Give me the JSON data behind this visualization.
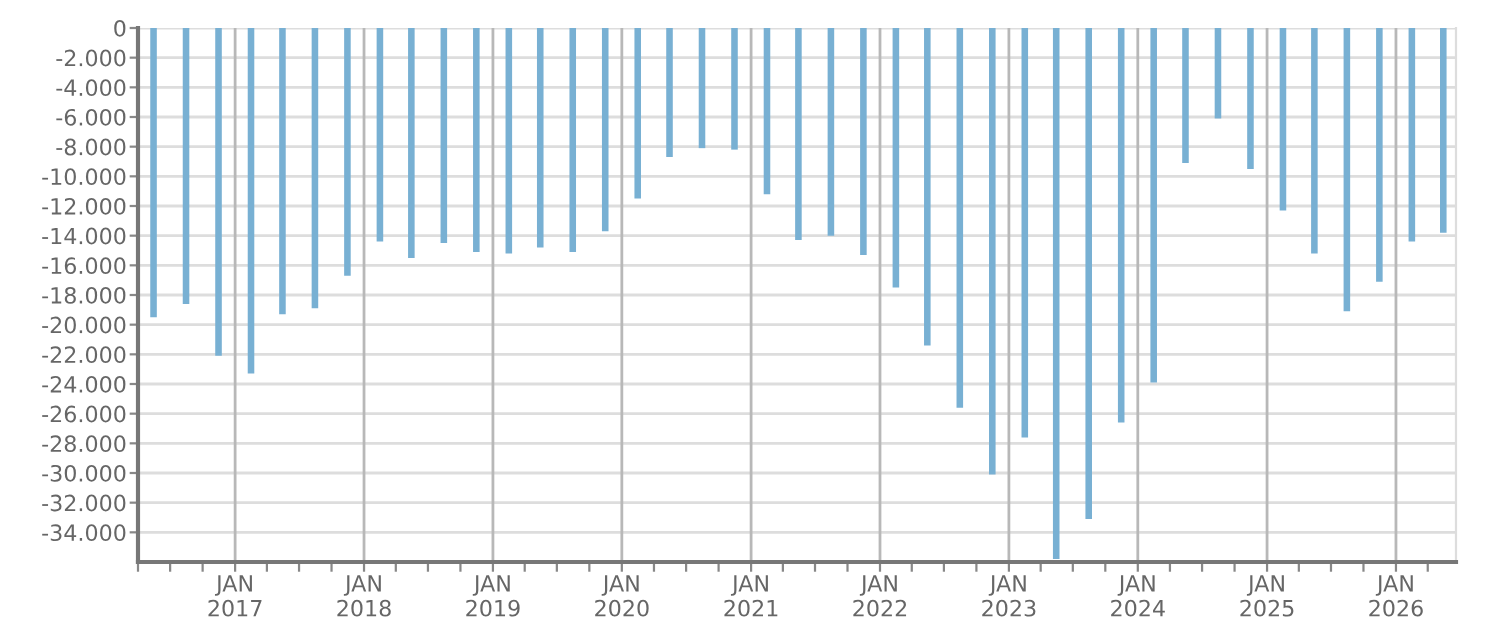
{
  "chart_data": {
    "type": "bar",
    "color": "#78b0d3",
    "x": [
      "2016-05-15",
      "2016-08-15",
      "2016-11-15",
      "2017-02-15",
      "2017-05-15",
      "2017-08-15",
      "2017-11-15",
      "2018-02-15",
      "2018-05-15",
      "2018-08-15",
      "2018-11-15",
      "2019-02-15",
      "2019-05-15",
      "2019-08-15",
      "2019-11-15",
      "2020-02-15",
      "2020-05-15",
      "2020-08-15",
      "2020-11-15",
      "2021-02-15",
      "2021-05-15",
      "2021-08-15",
      "2021-11-15",
      "2022-02-15",
      "2022-05-15",
      "2022-08-15",
      "2022-11-15",
      "2023-02-15",
      "2023-05-15",
      "2023-08-15",
      "2023-11-15",
      "2024-02-15",
      "2024-05-15",
      "2024-08-15",
      "2024-11-15",
      "2025-02-15",
      "2025-05-15",
      "2025-08-15",
      "2025-11-15",
      "2026-02-15",
      "2026-05-15"
    ],
    "values": [
      -19500,
      -18600,
      -22100,
      -23300,
      -19300,
      -18900,
      -16700,
      -14400,
      -15500,
      -14500,
      -15100,
      -15200,
      -14800,
      -15100,
      -13700,
      -11500,
      -8700,
      -8100,
      -8200,
      -11200,
      -14300,
      -14000,
      -15300,
      -17500,
      -21400,
      -25600,
      -30100,
      -27600,
      -35800,
      -33100,
      -26600,
      -23900,
      -9100,
      -6100,
      -9500,
      -12300,
      -15200,
      -19100,
      -17100,
      -14400,
      -13800
    ],
    "xlim": [
      "2016-04-01",
      "2026-06-20"
    ],
    "xticks": [
      {
        "value": "2016-04-01",
        "label": null
      },
      {
        "value": "2016-07-01",
        "label": null
      },
      {
        "value": "2016-10-01",
        "label": null
      },
      {
        "value": "2017-01-01",
        "label": "JAN\n2017"
      },
      {
        "value": "2017-04-01",
        "label": null
      },
      {
        "value": "2017-07-01",
        "label": null
      },
      {
        "value": "2017-10-01",
        "label": null
      },
      {
        "value": "2018-01-01",
        "label": "JAN\n2018"
      },
      {
        "value": "2018-04-01",
        "label": null
      },
      {
        "value": "2018-07-01",
        "label": null
      },
      {
        "value": "2018-10-01",
        "label": null
      },
      {
        "value": "2019-01-01",
        "label": "JAN\n2019"
      },
      {
        "value": "2019-04-01",
        "label": null
      },
      {
        "value": "2019-07-01",
        "label": null
      },
      {
        "value": "2019-10-01",
        "label": null
      },
      {
        "value": "2020-01-01",
        "label": "JAN\n2020"
      },
      {
        "value": "2020-04-01",
        "label": null
      },
      {
        "value": "2020-07-01",
        "label": null
      },
      {
        "value": "2020-10-01",
        "label": null
      },
      {
        "value": "2021-01-01",
        "label": "JAN\n2021"
      },
      {
        "value": "2021-04-01",
        "label": null
      },
      {
        "value": "2021-07-01",
        "label": null
      },
      {
        "value": "2021-10-01",
        "label": null
      },
      {
        "value": "2022-01-01",
        "label": "JAN\n2022"
      },
      {
        "value": "2022-04-01",
        "label": null
      },
      {
        "value": "2022-07-01",
        "label": null
      },
      {
        "value": "2022-10-01",
        "label": null
      },
      {
        "value": "2023-01-01",
        "label": "JAN\n2023"
      },
      {
        "value": "2023-04-01",
        "label": null
      },
      {
        "value": "2023-07-01",
        "label": null
      },
      {
        "value": "2023-10-01",
        "label": null
      },
      {
        "value": "2024-01-01",
        "label": "JAN\n2024"
      },
      {
        "value": "2024-04-01",
        "label": null
      },
      {
        "value": "2024-07-01",
        "label": null
      },
      {
        "value": "2024-10-01",
        "label": null
      },
      {
        "value": "2025-01-01",
        "label": "JAN\n2025"
      },
      {
        "value": "2025-04-01",
        "label": null
      },
      {
        "value": "2025-07-01",
        "label": null
      },
      {
        "value": "2025-10-01",
        "label": null
      },
      {
        "value": "2026-01-01",
        "label": "JAN\n2026"
      },
      {
        "value": "2026-04-01",
        "label": null
      }
    ],
    "ylim": [
      -36000,
      0
    ],
    "yticks": [
      0,
      {
        "value": -2000,
        "label": "-2.000"
      },
      {
        "value": -4000,
        "label": "-4.000"
      },
      {
        "value": -6000,
        "label": "-6.000"
      },
      {
        "value": -8000,
        "label": "-8.000"
      },
      {
        "value": -10000,
        "label": "-10.000"
      },
      {
        "value": -12000,
        "label": "-12.000"
      },
      {
        "value": -14000,
        "label": "-14.000"
      },
      {
        "value": -16000,
        "label": "-16.000"
      },
      {
        "value": -18000,
        "label": "-18.000"
      },
      {
        "value": -20000,
        "label": "-20.000"
      },
      {
        "value": -22000,
        "label": "-22.000"
      },
      {
        "value": -24000,
        "label": "-24.000"
      },
      {
        "value": -26000,
        "label": "-26.000"
      },
      {
        "value": -28000,
        "label": "-28.000"
      },
      {
        "value": -30000,
        "label": "-30.000"
      },
      {
        "value": -32000,
        "label": "-32.000"
      },
      {
        "value": -34000,
        "label": "-34.000"
      }
    ],
    "grid": true
  }
}
